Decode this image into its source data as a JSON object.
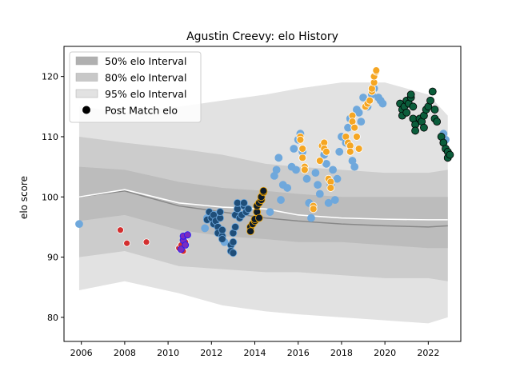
{
  "chart_data": {
    "type": "scatter",
    "title": "Agustin Creevy: elo History",
    "ylabel": "elo score",
    "xlabel": "",
    "xlim": [
      2005.2,
      2023.5
    ],
    "ylim": [
      76,
      125
    ],
    "xticks": [
      2006,
      2008,
      2010,
      2012,
      2014,
      2016,
      2018,
      2020,
      2022
    ],
    "yticks": [
      80,
      90,
      100,
      110,
      120
    ],
    "grid": false,
    "legend_position": "top-left",
    "legend": [
      {
        "label": "50% elo Interval",
        "kind": "band",
        "color": "#b0b0b0"
      },
      {
        "label": "80% elo Interval",
        "kind": "band",
        "color": "#c8c8c8"
      },
      {
        "label": "95% elo Interval",
        "kind": "band",
        "color": "#e2e2e2"
      },
      {
        "label": "Post Match elo",
        "kind": "marker",
        "color": "#000000"
      }
    ],
    "bands": {
      "x": [
        2005.9,
        2008.0,
        2010.5,
        2012.5,
        2014.5,
        2016.0,
        2018.0,
        2020.0,
        2022.0,
        2022.9
      ],
      "mean_white": [
        100.0,
        101.2,
        99.0,
        98.3,
        98.0,
        97.0,
        96.5,
        96.3,
        96.2,
        96.2
      ],
      "mean_grey": [
        100.0,
        101.0,
        98.5,
        97.5,
        96.5,
        96.0,
        95.5,
        95.2,
        95.0,
        95.2
      ],
      "p50": [
        [
          96.0,
          105.0
        ],
        [
          97.0,
          104.5
        ],
        [
          94.5,
          102.5
        ],
        [
          93.5,
          101.5
        ],
        [
          93.0,
          101.0
        ],
        [
          92.5,
          100.5
        ],
        [
          92.5,
          100.0
        ],
        [
          92.0,
          100.0
        ],
        [
          91.5,
          100.0
        ],
        [
          91.5,
          100.0
        ]
      ],
      "p80": [
        [
          90.0,
          110.0
        ],
        [
          91.0,
          109.0
        ],
        [
          88.5,
          108.0
        ],
        [
          88.0,
          107.0
        ],
        [
          87.5,
          105.5
        ],
        [
          87.5,
          105.0
        ],
        [
          87.0,
          104.5
        ],
        [
          86.5,
          104.0
        ],
        [
          86.5,
          104.0
        ],
        [
          86.0,
          104.5
        ]
      ],
      "p95": [
        [
          84.5,
          115.0
        ],
        [
          86.0,
          114.0
        ],
        [
          84.0,
          115.0
        ],
        [
          82.0,
          116.0
        ],
        [
          81.0,
          117.0
        ],
        [
          80.5,
          118.0
        ],
        [
          80.0,
          119.0
        ],
        [
          79.5,
          119.0
        ],
        [
          79.0,
          117.0
        ],
        [
          80.0,
          113.5
        ]
      ]
    },
    "series": [
      {
        "color": "#6fa8dc",
        "edge": "#6fa8dc",
        "r": 4.5,
        "points": [
          [
            2005.9,
            95.5
          ],
          [
            2011.7,
            94.8
          ],
          [
            2011.8,
            96.5
          ],
          [
            2012.2,
            97.0
          ],
          [
            2012.6,
            92.5
          ],
          [
            2014.7,
            97.5
          ],
          [
            2014.9,
            103.5
          ],
          [
            2015.0,
            104.5
          ],
          [
            2015.1,
            106.5
          ],
          [
            2015.2,
            99.5
          ],
          [
            2015.3,
            102.0
          ],
          [
            2015.5,
            101.5
          ],
          [
            2015.7,
            105.0
          ],
          [
            2015.8,
            108.0
          ],
          [
            2015.9,
            104.5
          ],
          [
            2016.0,
            109.5
          ],
          [
            2016.1,
            110.5
          ],
          [
            2016.2,
            107.5
          ],
          [
            2016.4,
            103.0
          ],
          [
            2016.5,
            99.0
          ],
          [
            2016.6,
            96.5
          ],
          [
            2016.7,
            98.5
          ],
          [
            2016.8,
            104.0
          ],
          [
            2016.9,
            102.0
          ],
          [
            2017.0,
            100.5
          ],
          [
            2017.1,
            108.5
          ],
          [
            2017.2,
            107.0
          ],
          [
            2017.3,
            105.5
          ],
          [
            2017.4,
            99.0
          ],
          [
            2017.5,
            102.0
          ],
          [
            2017.6,
            104.5
          ],
          [
            2017.7,
            99.5
          ],
          [
            2017.8,
            103.0
          ],
          [
            2017.9,
            107.5
          ],
          [
            2018.0,
            110.0
          ],
          [
            2018.2,
            109.0
          ],
          [
            2018.3,
            111.5
          ],
          [
            2018.4,
            113.0
          ],
          [
            2018.5,
            106.0
          ],
          [
            2018.6,
            105.0
          ],
          [
            2018.7,
            114.5
          ],
          [
            2018.8,
            114.0
          ],
          [
            2018.9,
            112.5
          ],
          [
            2019.0,
            116.5
          ],
          [
            2019.2,
            115.0
          ],
          [
            2019.4,
            117.0
          ],
          [
            2019.5,
            118.0
          ],
          [
            2019.7,
            116.5
          ],
          [
            2019.8,
            116.0
          ],
          [
            2019.9,
            115.5
          ],
          [
            2022.7,
            110.5
          ],
          [
            2022.8,
            109.5
          ]
        ]
      },
      {
        "color": "#d32f2f",
        "edge": "#ffffff",
        "r": 4,
        "points": [
          [
            2007.8,
            94.5
          ],
          [
            2008.1,
            92.3
          ],
          [
            2009.0,
            92.5
          ],
          [
            2010.5,
            91.5
          ],
          [
            2010.6,
            92.0
          ],
          [
            2010.7,
            91.0
          ],
          [
            2010.8,
            92.5
          ]
        ]
      },
      {
        "color": "#7b2cbf",
        "edge": "#1a1aff",
        "r": 4,
        "points": [
          [
            2010.6,
            91.3
          ],
          [
            2010.7,
            92.8
          ],
          [
            2010.7,
            93.5
          ],
          [
            2010.8,
            92.0
          ],
          [
            2010.9,
            93.7
          ]
        ]
      },
      {
        "color": "#1f4e79",
        "edge": "#6fa8dc",
        "r": 4.5,
        "points": [
          [
            2011.8,
            96.2
          ],
          [
            2011.9,
            97.5
          ],
          [
            2012.0,
            96.5
          ],
          [
            2012.1,
            95.5
          ],
          [
            2012.1,
            97.0
          ],
          [
            2012.2,
            96.0
          ],
          [
            2012.3,
            95.0
          ],
          [
            2012.3,
            94.0
          ],
          [
            2012.4,
            96.5
          ],
          [
            2012.4,
            97.5
          ],
          [
            2012.5,
            93.5
          ],
          [
            2012.5,
            94.5
          ],
          [
            2012.5,
            93.0
          ],
          [
            2012.9,
            92.0
          ],
          [
            2012.9,
            91.0
          ],
          [
            2013.0,
            90.7
          ],
          [
            2013.0,
            92.5
          ],
          [
            2013.0,
            94.0
          ],
          [
            2013.1,
            95.0
          ],
          [
            2013.1,
            97.0
          ],
          [
            2013.2,
            98.0
          ],
          [
            2013.2,
            99.0
          ],
          [
            2013.3,
            96.5
          ],
          [
            2013.4,
            97.0
          ],
          [
            2013.5,
            98.5
          ],
          [
            2013.5,
            99.0
          ],
          [
            2013.6,
            97.5
          ],
          [
            2013.7,
            98.0
          ]
        ]
      },
      {
        "color": "#0d1b2a",
        "edge": "#f0a500",
        "r": 4.5,
        "points": [
          [
            2013.8,
            95.0
          ],
          [
            2013.8,
            94.3
          ],
          [
            2013.9,
            95.5
          ],
          [
            2014.0,
            96.0
          ],
          [
            2014.0,
            96.3
          ],
          [
            2014.1,
            97.5
          ],
          [
            2014.1,
            98.5
          ],
          [
            2014.2,
            99.0
          ],
          [
            2014.2,
            96.5
          ],
          [
            2014.3,
            99.5
          ],
          [
            2014.3,
            100.0
          ],
          [
            2014.4,
            100.8
          ],
          [
            2014.4,
            101.0
          ]
        ]
      },
      {
        "color": "#f5a623",
        "edge": "#ffffff",
        "r": 4.5,
        "points": [
          [
            2016.1,
            110.0
          ],
          [
            2016.1,
            109.5
          ],
          [
            2016.2,
            108.0
          ],
          [
            2016.2,
            106.5
          ],
          [
            2016.3,
            105.0
          ],
          [
            2016.3,
            104.5
          ],
          [
            2016.7,
            98.5
          ],
          [
            2016.7,
            98.0
          ],
          [
            2017.0,
            106.0
          ],
          [
            2017.1,
            108.5
          ],
          [
            2017.2,
            109.0
          ],
          [
            2017.2,
            108.0
          ],
          [
            2017.3,
            107.5
          ],
          [
            2017.4,
            103.0
          ],
          [
            2017.5,
            102.5
          ],
          [
            2017.5,
            101.5
          ],
          [
            2018.2,
            110.0
          ],
          [
            2018.3,
            109.0
          ],
          [
            2018.4,
            108.5
          ],
          [
            2018.4,
            107.5
          ],
          [
            2018.5,
            113.5
          ],
          [
            2018.5,
            112.5
          ],
          [
            2018.6,
            111.5
          ],
          [
            2018.7,
            110.0
          ],
          [
            2018.8,
            108.0
          ],
          [
            2019.1,
            115.0
          ],
          [
            2019.2,
            115.5
          ],
          [
            2019.3,
            116.0
          ],
          [
            2019.4,
            117.5
          ],
          [
            2019.4,
            118.0
          ],
          [
            2019.5,
            119.0
          ],
          [
            2019.5,
            120.0
          ],
          [
            2019.6,
            120.8
          ],
          [
            2019.6,
            121.0
          ]
        ]
      },
      {
        "color": "#0b5d3b",
        "edge": "#000000",
        "r": 4.5,
        "points": [
          [
            2020.7,
            115.5
          ],
          [
            2020.8,
            114.5
          ],
          [
            2020.8,
            113.5
          ],
          [
            2020.9,
            115.0
          ],
          [
            2021.0,
            114.0
          ],
          [
            2021.0,
            116.0
          ],
          [
            2021.1,
            115.5
          ],
          [
            2021.2,
            116.5
          ],
          [
            2021.2,
            117.0
          ],
          [
            2021.3,
            115.0
          ],
          [
            2021.3,
            113.0
          ],
          [
            2021.4,
            112.0
          ],
          [
            2021.4,
            111.0
          ],
          [
            2021.6,
            113.0
          ],
          [
            2021.7,
            112.5
          ],
          [
            2021.8,
            111.5
          ],
          [
            2021.8,
            113.5
          ],
          [
            2021.9,
            114.5
          ],
          [
            2022.0,
            115.0
          ],
          [
            2022.1,
            116.0
          ],
          [
            2022.2,
            117.5
          ],
          [
            2022.3,
            114.5
          ],
          [
            2022.3,
            113.0
          ],
          [
            2022.4,
            112.5
          ],
          [
            2022.6,
            110.0
          ],
          [
            2022.7,
            109.0
          ],
          [
            2022.8,
            108.0
          ],
          [
            2022.9,
            107.5
          ],
          [
            2022.9,
            106.5
          ],
          [
            2023.0,
            107.0
          ]
        ]
      }
    ]
  }
}
